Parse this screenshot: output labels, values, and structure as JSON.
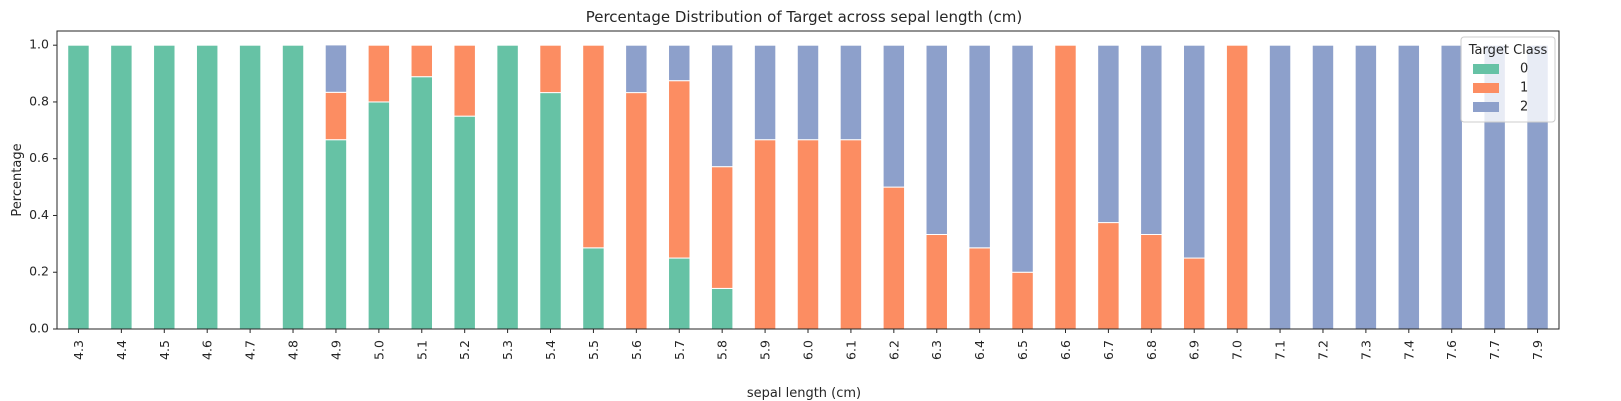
{
  "chart_data": {
    "type": "bar",
    "stacked": true,
    "title": "Percentage Distribution of Target across sepal length (cm)",
    "xlabel": "sepal length (cm)",
    "ylabel": "Percentage",
    "ylim": [
      0,
      1.05
    ],
    "yticks": [
      0.0,
      0.2,
      0.4,
      0.6,
      0.8,
      1.0
    ],
    "ytick_labels": [
      "0.0",
      "0.2",
      "0.4",
      "0.6",
      "0.8",
      "1.0"
    ],
    "categories": [
      "4.3",
      "4.4",
      "4.5",
      "4.6",
      "4.7",
      "4.8",
      "4.9",
      "5.0",
      "5.1",
      "5.2",
      "5.3",
      "5.4",
      "5.5",
      "5.6",
      "5.7",
      "5.8",
      "5.9",
      "6.0",
      "6.1",
      "6.2",
      "6.3",
      "6.4",
      "6.5",
      "6.6",
      "6.7",
      "6.8",
      "6.9",
      "7.0",
      "7.1",
      "7.2",
      "7.3",
      "7.4",
      "7.6",
      "7.7",
      "7.9"
    ],
    "series": [
      {
        "name": "0",
        "color": "#66c2a5",
        "values": [
          1.0,
          1.0,
          1.0,
          1.0,
          1.0,
          1.0,
          0.667,
          0.8,
          0.889,
          0.75,
          1.0,
          0.833,
          0.286,
          0.0,
          0.25,
          0.143,
          0.0,
          0.0,
          0.0,
          0.0,
          0.0,
          0.0,
          0.0,
          0.0,
          0.0,
          0.0,
          0.0,
          0.0,
          0.0,
          0.0,
          0.0,
          0.0,
          0.0,
          0.0,
          0.0
        ]
      },
      {
        "name": "1",
        "color": "#fc8d62",
        "values": [
          0.0,
          0.0,
          0.0,
          0.0,
          0.0,
          0.0,
          0.167,
          0.2,
          0.111,
          0.25,
          0.0,
          0.167,
          0.714,
          0.833,
          0.625,
          0.429,
          0.667,
          0.667,
          0.667,
          0.5,
          0.333,
          0.286,
          0.2,
          1.0,
          0.375,
          0.333,
          0.25,
          1.0,
          0.0,
          0.0,
          0.0,
          0.0,
          0.0,
          0.0,
          0.0
        ]
      },
      {
        "name": "2",
        "color": "#8da0cb",
        "values": [
          0.0,
          0.0,
          0.0,
          0.0,
          0.0,
          0.0,
          0.167,
          0.0,
          0.0,
          0.0,
          0.0,
          0.0,
          0.0,
          0.167,
          0.125,
          0.429,
          0.333,
          0.333,
          0.333,
          0.5,
          0.667,
          0.714,
          0.8,
          0.0,
          0.625,
          0.667,
          0.75,
          0.0,
          1.0,
          1.0,
          1.0,
          1.0,
          1.0,
          1.0,
          1.0
        ]
      }
    ],
    "legend": {
      "title": "Target Class",
      "placement": "top-right"
    },
    "grid": false
  }
}
